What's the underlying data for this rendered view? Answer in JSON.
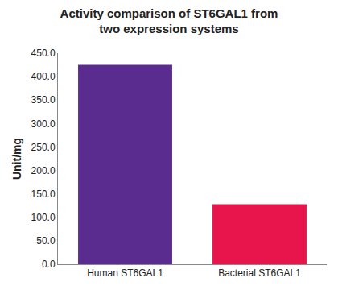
{
  "chart_data": {
    "type": "bar",
    "title": "Activity comparison of ST6GAL1 from two expression systems",
    "y_label": "Unit/mg",
    "categories": [
      "Human ST6GAL1",
      "Bacterial ST6GAL1"
    ],
    "values": [
      425,
      128
    ],
    "colors": [
      "#5b2c8f",
      "#e8144c"
    ],
    "ylim": [
      0,
      450
    ],
    "yticks": [
      {
        "value": 0,
        "label": "0.0"
      },
      {
        "value": 50,
        "label": "50.0"
      },
      {
        "value": 100,
        "label": "100.0"
      },
      {
        "value": 150,
        "label": "150.0"
      },
      {
        "value": 200,
        "label": "200.0"
      },
      {
        "value": 250,
        "label": "250.0"
      },
      {
        "value": 300,
        "label": "300.0"
      },
      {
        "value": 350,
        "label": "350.0"
      },
      {
        "value": 400,
        "label": "400.0"
      },
      {
        "value": 450,
        "label": "450.0"
      }
    ],
    "grid": false
  }
}
